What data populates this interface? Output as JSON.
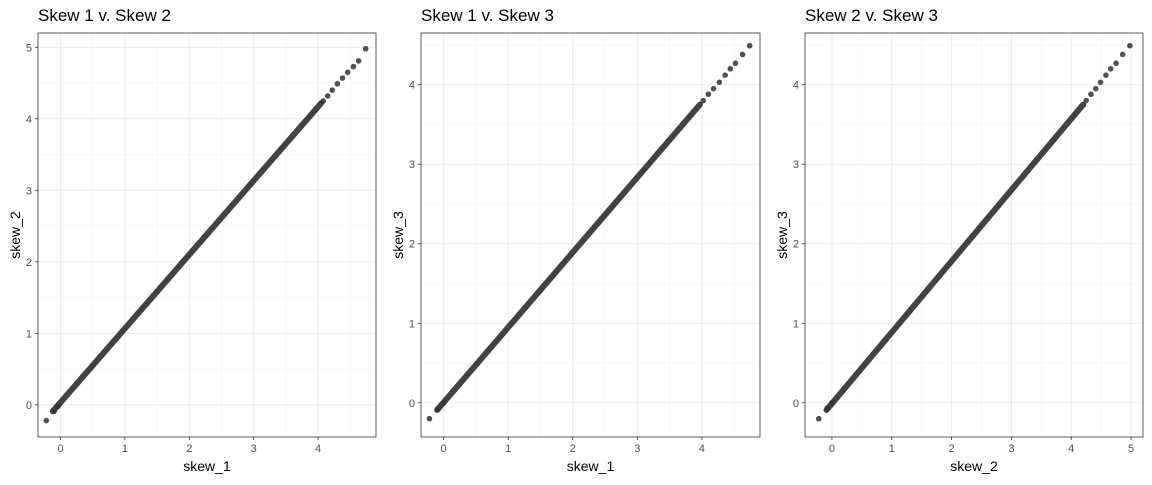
{
  "chart_data": [
    {
      "type": "scatter",
      "title": "Skew 1 v. Skew 2",
      "xlabel": "skew_1",
      "ylabel": "skew_2",
      "xlim": [
        -0.35,
        4.9
      ],
      "ylim": [
        -0.45,
        5.2
      ],
      "xticks": [
        0,
        1,
        2,
        3,
        4
      ],
      "yticks": [
        0,
        1,
        2,
        3,
        4,
        5
      ],
      "grid": true,
      "point_color": "#333333",
      "line_from": [
        -0.12,
        -0.09
      ],
      "line_to": [
        4.05,
        4.22
      ],
      "points": [
        {
          "x": -0.22,
          "y": -0.22
        },
        {
          "x": -0.1,
          "y": -0.09
        },
        {
          "x": -0.04,
          "y": -0.02
        },
        {
          "x": 4.08,
          "y": 4.25
        },
        {
          "x": 4.15,
          "y": 4.32
        },
        {
          "x": 4.22,
          "y": 4.4
        },
        {
          "x": 4.3,
          "y": 4.49
        },
        {
          "x": 4.38,
          "y": 4.57
        },
        {
          "x": 4.46,
          "y": 4.65
        },
        {
          "x": 4.55,
          "y": 4.73
        },
        {
          "x": 4.63,
          "y": 4.81
        },
        {
          "x": 4.74,
          "y": 4.98
        }
      ]
    },
    {
      "type": "scatter",
      "title": "Skew 1 v. Skew 3",
      "xlabel": "skew_1",
      "ylabel": "skew_3",
      "xlim": [
        -0.35,
        4.9
      ],
      "ylim": [
        -0.43,
        4.65
      ],
      "xticks": [
        0,
        1,
        2,
        3,
        4
      ],
      "yticks": [
        0,
        1,
        2,
        3,
        4
      ],
      "grid": true,
      "point_color": "#333333",
      "line_from": [
        -0.1,
        -0.09
      ],
      "line_to": [
        3.97,
        3.75
      ],
      "points": [
        {
          "x": -0.22,
          "y": -0.2
        },
        {
          "x": -0.08,
          "y": -0.07
        },
        {
          "x": 0.0,
          "y": 0.0
        },
        {
          "x": 4.02,
          "y": 3.8
        },
        {
          "x": 4.1,
          "y": 3.88
        },
        {
          "x": 4.18,
          "y": 3.95
        },
        {
          "x": 4.27,
          "y": 4.03
        },
        {
          "x": 4.36,
          "y": 4.12
        },
        {
          "x": 4.44,
          "y": 4.2
        },
        {
          "x": 4.52,
          "y": 4.27
        },
        {
          "x": 4.63,
          "y": 4.38
        },
        {
          "x": 4.74,
          "y": 4.49
        }
      ]
    },
    {
      "type": "scatter",
      "title": "Skew 2 v. Skew 3",
      "xlabel": "skew_2",
      "ylabel": "skew_3",
      "xlim": [
        -0.45,
        5.2
      ],
      "ylim": [
        -0.43,
        4.65
      ],
      "xticks": [
        0,
        1,
        2,
        3,
        4,
        5
      ],
      "yticks": [
        0,
        1,
        2,
        3,
        4
      ],
      "grid": true,
      "point_color": "#333333",
      "line_from": [
        -0.09,
        -0.09
      ],
      "line_to": [
        4.2,
        3.75
      ],
      "points": [
        {
          "x": -0.22,
          "y": -0.2
        },
        {
          "x": -0.08,
          "y": -0.07
        },
        {
          "x": 0.0,
          "y": 0.0
        },
        {
          "x": 4.25,
          "y": 3.8
        },
        {
          "x": 4.33,
          "y": 3.88
        },
        {
          "x": 4.41,
          "y": 3.95
        },
        {
          "x": 4.49,
          "y": 4.03
        },
        {
          "x": 4.58,
          "y": 4.12
        },
        {
          "x": 4.66,
          "y": 4.2
        },
        {
          "x": 4.75,
          "y": 4.27
        },
        {
          "x": 4.86,
          "y": 4.38
        },
        {
          "x": 4.98,
          "y": 4.49
        }
      ]
    }
  ]
}
